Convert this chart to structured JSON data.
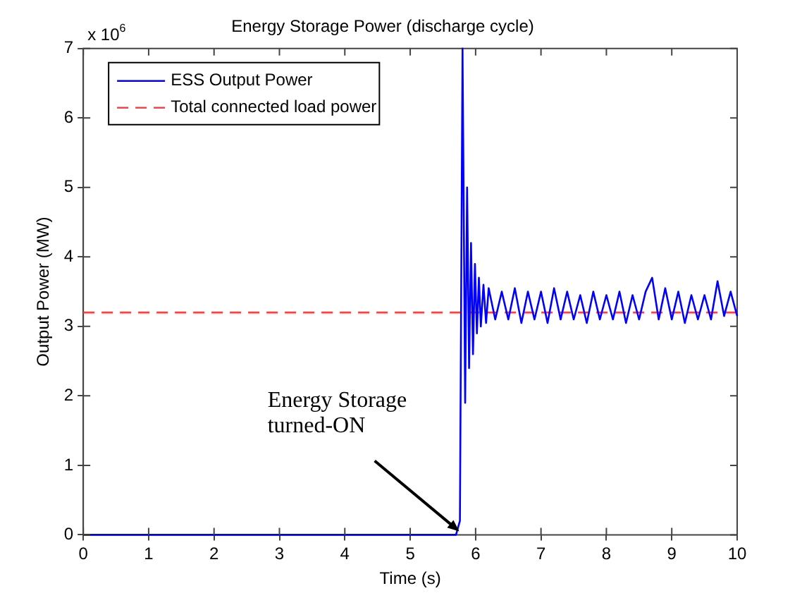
{
  "chart_data": {
    "type": "line",
    "title": "Energy Storage Power (discharge cycle)",
    "xlabel": "Time (s)",
    "ylabel": "Output Power (MW)",
    "xlim": [
      0,
      10
    ],
    "xticks": [
      0,
      1,
      2,
      3,
      4,
      5,
      6,
      7,
      8,
      9,
      10
    ],
    "ylim": [
      0,
      7
    ],
    "yticks": [
      0,
      1,
      2,
      3,
      4,
      5,
      6,
      7
    ],
    "grid": false,
    "legend": "top left",
    "marker": "none",
    "annotations": [
      "x 10$^{6}$",
      {
        "text": "Energy Storage\nturned-ON",
        "x": 5.75,
        "y": 0.05
      }
    ],
    "series": [
      {
        "name": "ESS Output Power",
        "color": "#0000ff",
        "line_style": "solid",
        "x": [
          0,
          5.7,
          5.76,
          5.8,
          5.84,
          5.87,
          5.9,
          5.93,
          5.96,
          5.99,
          6.02,
          6.05,
          6.08,
          6.12,
          6.16,
          6.2,
          6.3,
          6.4,
          6.5,
          6.6,
          6.7,
          6.8,
          6.9,
          7.0,
          7.1,
          7.2,
          7.3,
          7.4,
          7.5,
          7.6,
          7.7,
          7.8,
          7.9,
          8.0,
          8.1,
          8.2,
          8.3,
          8.4,
          8.5,
          8.6,
          8.7,
          8.8,
          8.9,
          9.0,
          9.1,
          9.2,
          9.3,
          9.4,
          9.5,
          9.6,
          9.7,
          9.8,
          9.9,
          10
        ],
        "values": [
          0,
          0,
          0.2,
          7,
          1.9,
          5.0,
          2.4,
          4.2,
          2.6,
          3.9,
          2.9,
          3.7,
          3.0,
          3.6,
          3.05,
          3.55,
          3.1,
          3.5,
          3.1,
          3.55,
          3.05,
          3.5,
          3.1,
          3.5,
          3.05,
          3.55,
          3.1,
          3.5,
          3.1,
          3.45,
          3.05,
          3.5,
          3.1,
          3.45,
          3.1,
          3.5,
          3.05,
          3.45,
          3.1,
          3.5,
          3.7,
          3.1,
          3.55,
          3.1,
          3.5,
          3.05,
          3.45,
          3.1,
          3.45,
          3.1,
          3.65,
          3.15,
          3.5,
          3.15
        ]
      },
      {
        "name": "Total connected load power",
        "color": "#ff4040",
        "line_style": "dashed",
        "x": [
          0,
          10
        ],
        "values": [
          3.2,
          3.2
        ]
      }
    ]
  }
}
